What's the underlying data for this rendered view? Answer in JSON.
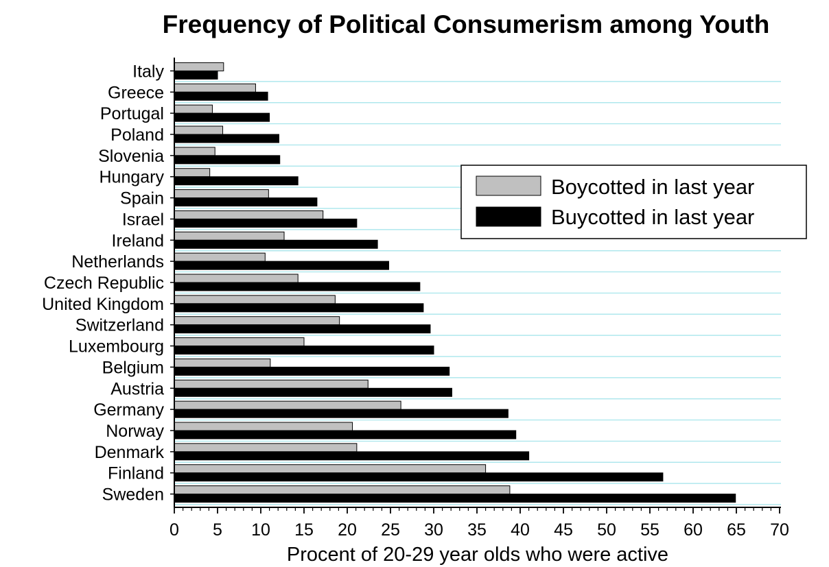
{
  "colors": {
    "boycott_fill": "#c0c0c0",
    "buycott_fill": "#000000",
    "gridline": "#9fe3ea",
    "axis": "#000000"
  },
  "chart_data": {
    "type": "bar",
    "orientation": "horizontal",
    "title": "Frequency of Political Consumerism among Youth",
    "xlabel": "Procent of 20-29 year olds who were active",
    "ylabel": "",
    "xlim": [
      0,
      70
    ],
    "x_ticks": [
      "0",
      "5",
      "10",
      "15",
      "20",
      "25",
      "30",
      "35",
      "40",
      "45",
      "50",
      "55",
      "60",
      "65",
      "70"
    ],
    "grid": "horizontal lines",
    "legend_position": "center-right",
    "categories": [
      "Italy",
      "Greece",
      "Portugal",
      "Poland",
      "Slovenia",
      "Hungary",
      "Spain",
      "Israel",
      "Ireland",
      "Netherlands",
      "Czech Republic",
      "United Kingdom",
      "Switzerland",
      "Luxembourg",
      "Belgium",
      "Austria",
      "Germany",
      "Norway",
      "Denmark",
      "Finland",
      "Sweden"
    ],
    "series": [
      {
        "name": "Boycotted in last year",
        "color": "#c0c0c0",
        "values": [
          5.7,
          9.4,
          4.4,
          5.6,
          4.7,
          4.1,
          10.9,
          17.2,
          12.7,
          10.5,
          14.3,
          18.6,
          19.1,
          15.0,
          11.1,
          22.4,
          26.2,
          20.6,
          21.1,
          36.0,
          38.8
        ]
      },
      {
        "name": "Buycotted in last year",
        "color": "#000000",
        "values": [
          5.0,
          10.8,
          11.0,
          12.1,
          12.2,
          14.3,
          16.5,
          21.1,
          23.5,
          24.8,
          28.4,
          28.8,
          29.6,
          30.0,
          31.8,
          32.1,
          38.6,
          39.5,
          41.0,
          56.5,
          64.9
        ]
      }
    ]
  }
}
